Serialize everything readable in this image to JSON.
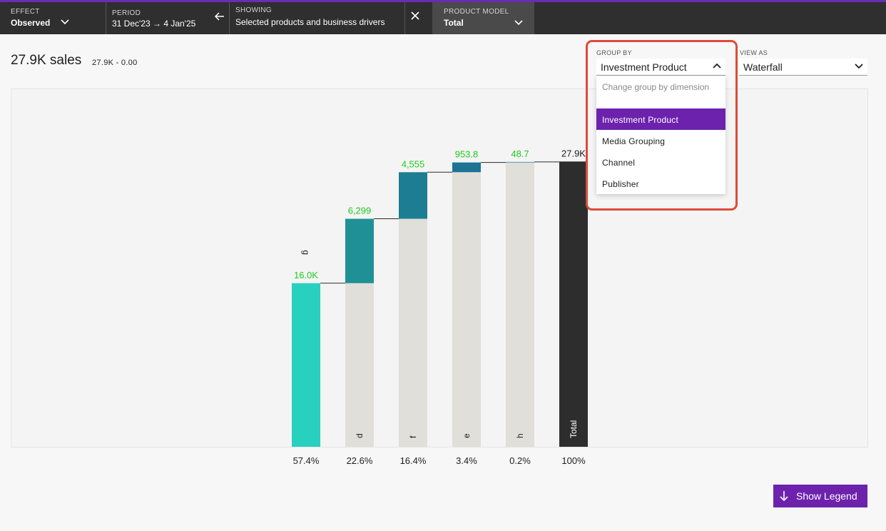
{
  "topbar": {
    "effect": {
      "label": "EFFECT",
      "value": "Observed"
    },
    "period": {
      "label": "PERIOD",
      "value": "31 Dec'23 → 4 Jan'25"
    },
    "showing": {
      "label": "SHOWING",
      "value": "Selected products and business drivers"
    },
    "product_model": {
      "label": "PRODUCT MODEL",
      "value": "Total"
    }
  },
  "header": {
    "headline": "27.9K sales",
    "range": "27.9K - 0.00"
  },
  "group_by": {
    "label": "GROUP BY",
    "selected": "Investment Product",
    "hint": "Change group by dimension",
    "options": [
      "Investment Product",
      "Media Grouping",
      "Channel",
      "Publisher"
    ]
  },
  "view_as": {
    "label": "VIEW AS",
    "selected": "Waterfall"
  },
  "colors": {
    "accent": "#6d22ad",
    "topbar": "#2f2f2f",
    "highlight": "#de4b38",
    "bar_first": "#28d0c0",
    "bar_increment": [
      "#1f9096",
      "#1d7d92",
      "#1c7394"
    ],
    "bar_base": "#e0dfd9",
    "bar_total": "#2d2d2d",
    "value_label": "#1ecb1e"
  },
  "chart_data": {
    "type": "bar",
    "subtype": "waterfall",
    "categories": [
      "g",
      "d",
      "f",
      "e",
      "h",
      "Total"
    ],
    "values": [
      16000,
      6299,
      4555,
      953.8,
      48.7,
      27900
    ],
    "value_labels": [
      "16.0K",
      "6,299",
      "4,555",
      "953.8",
      "48.7",
      "27.9K"
    ],
    "shares": [
      "57.4%",
      "22.6%",
      "16.4%",
      "3.4%",
      "0.2%",
      "100%"
    ],
    "ylim": [
      0,
      34900
    ],
    "grid": false
  },
  "legend_button": {
    "label": "Show Legend"
  }
}
